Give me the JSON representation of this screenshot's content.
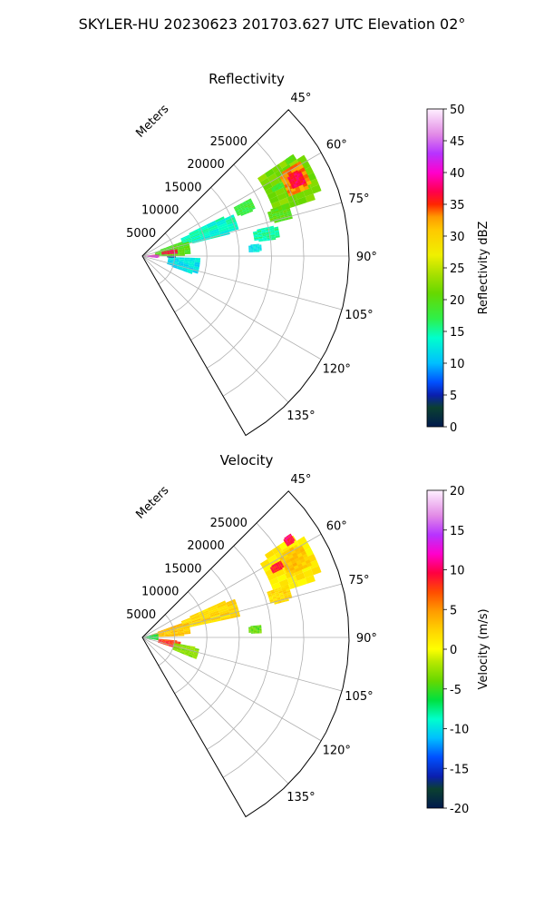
{
  "figure": {
    "title": "SKYLER-HU  20230623  201703.627 UTC Elevation 02°"
  },
  "chart_data": [
    {
      "type": "polar_sector_heatmap",
      "title": "Reflectivity",
      "theta_start_deg": 45,
      "theta_end_deg": 150,
      "theta_ticks": [
        45,
        60,
        75,
        90,
        105,
        120,
        135
      ],
      "theta_tick_labels": [
        "45°",
        "60°",
        "75°",
        "90°",
        "105°",
        "120°",
        "135°"
      ],
      "radial_max_m": 32000,
      "radial_ticks": [
        5000,
        10000,
        15000,
        20000,
        25000
      ],
      "radial_tick_labels": [
        "5000",
        "10000",
        "15000",
        "20000",
        "25000"
      ],
      "radial_axis_label": "Meters",
      "grid": true,
      "colorbar": {
        "label": "Reflectivity dBZ",
        "min": 0,
        "max": 50,
        "ticks": [
          0,
          5,
          10,
          15,
          20,
          25,
          30,
          35,
          40,
          45,
          50
        ],
        "stops": [
          [
            0,
            "#001a4d"
          ],
          [
            0.06,
            "#0b4030"
          ],
          [
            0.1,
            "#0a1fb0"
          ],
          [
            0.14,
            "#0050ff"
          ],
          [
            0.2,
            "#00bfff"
          ],
          [
            0.28,
            "#00ffcc"
          ],
          [
            0.34,
            "#2ef04a"
          ],
          [
            0.42,
            "#66d800"
          ],
          [
            0.48,
            "#a8e000"
          ],
          [
            0.54,
            "#f0f000"
          ],
          [
            0.62,
            "#ffc800"
          ],
          [
            0.66,
            "#ff9b00"
          ],
          [
            0.7,
            "#ff2600"
          ],
          [
            0.74,
            "#ff004d"
          ],
          [
            0.8,
            "#ff00cc"
          ],
          [
            0.86,
            "#b733ff"
          ],
          [
            0.92,
            "#e28ae6"
          ],
          [
            1,
            "#fff0ff"
          ]
        ]
      },
      "echo_regions": [
        {
          "theta": [
            56,
            72
          ],
          "r": [
            21500,
            29500
          ],
          "value": 22
        },
        {
          "theta": [
            59,
            68
          ],
          "r": [
            24500,
            28500
          ],
          "value": 33
        },
        {
          "theta": [
            61,
            66
          ],
          "r": [
            25500,
            27800
          ],
          "value": 37
        },
        {
          "theta": [
            70,
            76
          ],
          "r": [
            20500,
            24000
          ],
          "value": 20
        },
        {
          "theta": [
            77,
            83
          ],
          "r": [
            17500,
            21500
          ],
          "value": 15
        },
        {
          "theta": [
            62,
            68
          ],
          "r": [
            16000,
            19000
          ],
          "value": 18
        },
        {
          "theta": [
            64,
            76
          ],
          "r": [
            6500,
            15500
          ],
          "value": 14
        },
        {
          "theta": [
            70,
            90
          ],
          "r": [
            2000,
            7500
          ],
          "value": 20
        },
        {
          "theta": [
            78,
            86
          ],
          "r": [
            3000,
            5500
          ],
          "value": 37
        },
        {
          "theta": [
            84,
            96
          ],
          "r": [
            300,
            2600
          ],
          "value": 38
        },
        {
          "theta": [
            86,
            97
          ],
          "r": [
            500,
            2400
          ],
          "value": 42
        },
        {
          "theta": [
            92,
            110
          ],
          "r": [
            4000,
            9000
          ],
          "value": 12
        },
        {
          "theta": [
            89,
            93
          ],
          "r": [
            3800,
            5200
          ],
          "value": 4
        },
        {
          "theta": [
            84,
            88
          ],
          "r": [
            16500,
            18500
          ],
          "value": 12
        },
        {
          "theta": [
            62,
            64
          ],
          "r": [
            22500,
            24500
          ],
          "value": 18
        },
        {
          "theta": [
            56,
            58
          ],
          "r": [
            26500,
            28000
          ],
          "value": 20
        }
      ]
    },
    {
      "type": "polar_sector_heatmap",
      "title": "Velocity",
      "theta_start_deg": 45,
      "theta_end_deg": 150,
      "theta_ticks": [
        45,
        60,
        75,
        90,
        105,
        120,
        135
      ],
      "theta_tick_labels": [
        "45°",
        "60°",
        "75°",
        "90°",
        "105°",
        "120°",
        "135°"
      ],
      "radial_max_m": 32000,
      "radial_ticks": [
        5000,
        10000,
        15000,
        20000,
        25000
      ],
      "radial_tick_labels": [
        "5000",
        "10000",
        "15000",
        "20000",
        "25000"
      ],
      "radial_axis_label": "Meters",
      "grid": true,
      "colorbar": {
        "label": "Velocity (m/s)",
        "min": -20,
        "max": 20,
        "ticks": [
          -20,
          -15,
          -10,
          -5,
          0,
          5,
          10,
          15,
          20
        ],
        "stops": [
          [
            0,
            "#001a4d"
          ],
          [
            0.06,
            "#0b4030"
          ],
          [
            0.1,
            "#0a1fb0"
          ],
          [
            0.16,
            "#0050ff"
          ],
          [
            0.22,
            "#00bfff"
          ],
          [
            0.28,
            "#00ffcc"
          ],
          [
            0.34,
            "#00e040"
          ],
          [
            0.4,
            "#66d800"
          ],
          [
            0.46,
            "#b8e800"
          ],
          [
            0.5,
            "#ffff00"
          ],
          [
            0.56,
            "#ffd200"
          ],
          [
            0.62,
            "#ff9b00"
          ],
          [
            0.68,
            "#ff4d00"
          ],
          [
            0.74,
            "#ff0040"
          ],
          [
            0.8,
            "#ff00cc"
          ],
          [
            0.86,
            "#b733ff"
          ],
          [
            0.92,
            "#e28ae6"
          ],
          [
            1,
            "#fff0ff"
          ]
        ]
      },
      "echo_regions": [
        {
          "theta": [
            56,
            72
          ],
          "r": [
            21500,
            29500
          ],
          "value": 1
        },
        {
          "theta": [
            59,
            67
          ],
          "r": [
            24500,
            28500
          ],
          "value": 3
        },
        {
          "theta": [
            70,
            76
          ],
          "r": [
            20500,
            24000
          ],
          "value": 2
        },
        {
          "theta": [
            66,
            78
          ],
          "r": [
            6500,
            15500
          ],
          "value": 2
        },
        {
          "theta": [
            70,
            88
          ],
          "r": [
            1500,
            7500
          ],
          "value": 3
        },
        {
          "theta": [
            74,
            100
          ],
          "r": [
            200,
            2500
          ],
          "value": -6
        },
        {
          "theta": [
            95,
            108
          ],
          "r": [
            2500,
            6000
          ],
          "value": 8
        },
        {
          "theta": [
            100,
            112
          ],
          "r": [
            5000,
            9000
          ],
          "value": -3
        },
        {
          "theta": [
            84,
            88
          ],
          "r": [
            16500,
            18500
          ],
          "value": -4
        },
        {
          "theta": [
            61,
            64
          ],
          "r": [
            22500,
            24500
          ],
          "value": 9
        },
        {
          "theta": [
            55,
            58
          ],
          "r": [
            26500,
            28000
          ],
          "value": 10
        }
      ]
    }
  ]
}
